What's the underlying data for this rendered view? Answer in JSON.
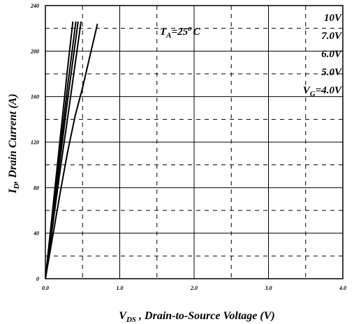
{
  "chart_data": {
    "type": "line",
    "xlabel": {
      "main": "V",
      "sub": "DS",
      "rest": " , Drain-to-Source Voltage (V)"
    },
    "ylabel": {
      "main": "I",
      "sub": "D",
      "rest": ", Drain Current (A)"
    },
    "xlim": [
      0,
      4.0
    ],
    "ylim": [
      0,
      240
    ],
    "x_ticks": [
      0,
      1,
      2,
      3,
      4
    ],
    "x_tick_labels": [
      "0.0",
      "1.0",
      "2.0",
      "3.0",
      "4.0"
    ],
    "y_ticks": [
      0,
      40,
      80,
      120,
      160,
      200,
      240
    ],
    "y_tick_labels": [
      "0",
      "40",
      "80",
      "120",
      "160",
      "200",
      "240"
    ],
    "grid": {
      "solid_x": [
        1,
        2,
        3
      ],
      "dashed_x": [
        0.5,
        1.5,
        2.5,
        3.5
      ],
      "solid_y": [
        40,
        80,
        120,
        160,
        200
      ],
      "dashed_y": [
        20,
        60,
        100,
        140,
        180,
        220
      ]
    },
    "series": [
      {
        "name": "10V",
        "x": [
          0,
          0.1,
          0.2,
          0.3,
          0.37
        ],
        "y": [
          0,
          62,
          124,
          186,
          226
        ]
      },
      {
        "name": "7.0V",
        "x": [
          0,
          0.1,
          0.2,
          0.3,
          0.41
        ],
        "y": [
          0,
          57,
          114,
          170,
          226
        ]
      },
      {
        "name": "6.0V",
        "x": [
          0,
          0.1,
          0.2,
          0.3,
          0.44
        ],
        "y": [
          0,
          53,
          106,
          158,
          226
        ]
      },
      {
        "name": "5.0V",
        "x": [
          0,
          0.1,
          0.2,
          0.3,
          0.48
        ],
        "y": [
          0,
          48,
          96,
          142,
          226
        ]
      },
      {
        "name": "4.0V",
        "x": [
          0,
          0.1,
          0.2,
          0.3,
          0.4,
          0.5,
          0.6,
          0.7
        ],
        "y": [
          0,
          38,
          76,
          112,
          143,
          168,
          196,
          224
        ]
      }
    ],
    "annotation": {
      "main": "T",
      "sub": "A",
      "rest": "=25",
      "sup": "o",
      "unit": "C"
    },
    "legend_labels": [
      {
        "text": "10V"
      },
      {
        "text": "7.0V"
      },
      {
        "text": "6.0V"
      },
      {
        "text": "5.0V"
      },
      {
        "main": "V",
        "sub": "G",
        "rest": "=4.0V"
      }
    ]
  }
}
